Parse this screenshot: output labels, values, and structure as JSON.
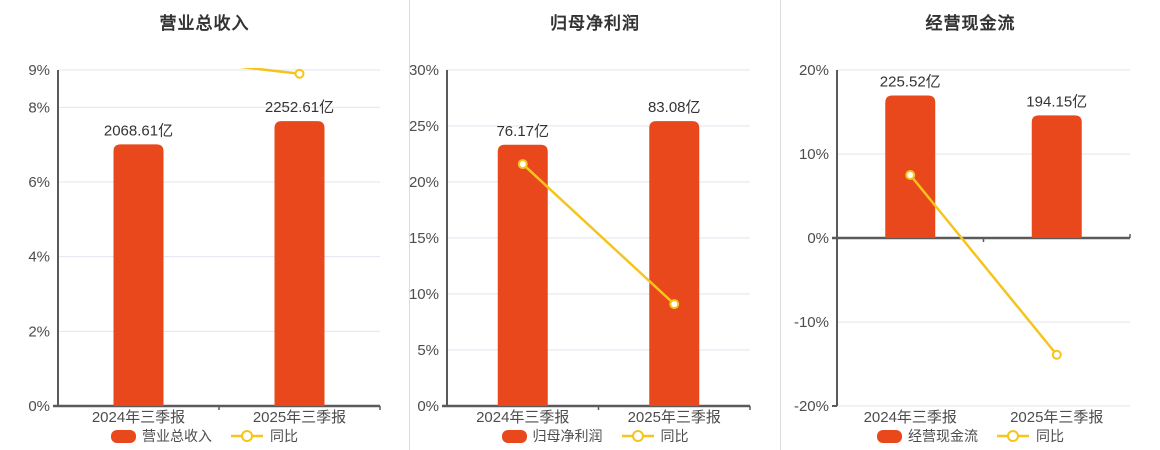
{
  "app": {
    "description": "三张财务指标同比对比图",
    "background": "#ffffff"
  },
  "colors": {
    "bar": "#e8481b",
    "line": "#f5c41d",
    "grid": "#e2e6f2",
    "axis": "#5a5a5a",
    "tick_text": "#4d4d4d",
    "value_text": "#333333",
    "title_text": "#333333",
    "legend_text": "#4d4d4d",
    "divider": "#dcdcdc",
    "marker_fill": "#ffffff"
  },
  "chart_data": [
    {
      "type": "bar",
      "title": "营业总收入",
      "categories": [
        "2024年三季报",
        "2025年三季报"
      ],
      "series": [
        {
          "name": "营业总收入",
          "kind": "bar",
          "unit": "亿",
          "values": [
            2068.61,
            2252.61
          ],
          "value_labels": [
            "2068.61亿",
            "2252.61亿"
          ]
        },
        {
          "name": "同比",
          "kind": "line",
          "unit": "%",
          "values": [
            9.4,
            8.9
          ],
          "estimated": true,
          "first_point_clipped_above_ymax": true
        }
      ],
      "y_axis": {
        "min": 0,
        "max": 9,
        "ticks": [
          0,
          2,
          4,
          6,
          8,
          9
        ],
        "tick_labels": [
          "0%",
          "2%",
          "4%",
          "6%",
          "8%",
          "9%"
        ]
      },
      "legend": [
        {
          "label": "营业总收入"
        },
        {
          "label": "同比"
        }
      ],
      "grid": true,
      "legend_position": "bottom"
    },
    {
      "type": "bar",
      "title": "归母净利润",
      "categories": [
        "2024年三季报",
        "2025年三季报"
      ],
      "series": [
        {
          "name": "归母净利润",
          "kind": "bar",
          "unit": "亿",
          "values": [
            76.17,
            83.08
          ],
          "value_labels": [
            "76.17亿",
            "83.08亿"
          ]
        },
        {
          "name": "同比",
          "kind": "line",
          "unit": "%",
          "values": [
            21.6,
            9.1
          ],
          "estimated": true
        }
      ],
      "y_axis": {
        "min": 0,
        "max": 30,
        "ticks": [
          0,
          5,
          10,
          15,
          20,
          25,
          30
        ],
        "tick_labels": [
          "0%",
          "5%",
          "10%",
          "15%",
          "20%",
          "25%",
          "30%"
        ]
      },
      "legend": [
        {
          "label": "归母净利润"
        },
        {
          "label": "同比"
        }
      ],
      "grid": true,
      "legend_position": "bottom"
    },
    {
      "type": "bar",
      "title": "经营现金流",
      "categories": [
        "2024年三季报",
        "2025年三季报"
      ],
      "series": [
        {
          "name": "经营现金流",
          "kind": "bar",
          "unit": "亿",
          "values": [
            225.52,
            194.15
          ],
          "value_labels": [
            "225.52亿",
            "194.15亿"
          ]
        },
        {
          "name": "同比",
          "kind": "line",
          "unit": "%",
          "values": [
            7.5,
            -13.9
          ],
          "estimated": true
        }
      ],
      "y_axis": {
        "min": -20,
        "max": 20,
        "ticks": [
          -20,
          -10,
          0,
          10,
          20
        ],
        "tick_labels": [
          "-20%",
          "-10%",
          "0%",
          "10%",
          "20%"
        ]
      },
      "legend": [
        {
          "label": "经营现金流"
        },
        {
          "label": "同比"
        }
      ],
      "grid": true,
      "legend_position": "bottom"
    }
  ]
}
